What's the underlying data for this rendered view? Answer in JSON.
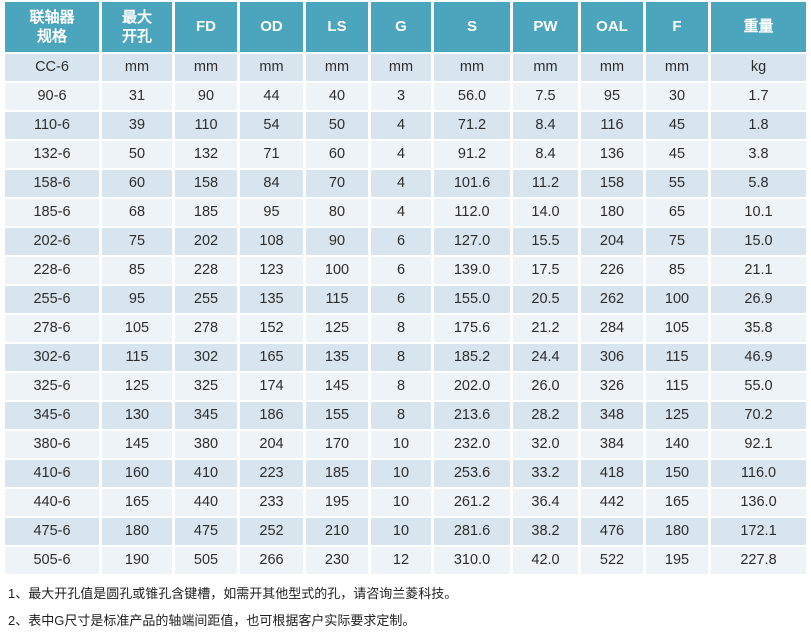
{
  "colors": {
    "header_bg": "#4AA5BD",
    "header_text": "#FFFFFF",
    "row_dark": "#D8E5EE",
    "row_light": "#EDF3F7",
    "cell_text": "#2D2D2D",
    "note_text": "#1F1F1F",
    "page_bg": "#FFFFFF"
  },
  "table": {
    "columns": [
      {
        "key": "model",
        "label": "联轴器\n规格"
      },
      {
        "key": "max-bore",
        "label": "最大\n开孔"
      },
      {
        "key": "fd",
        "label": "FD"
      },
      {
        "key": "od",
        "label": "OD"
      },
      {
        "key": "ls",
        "label": "LS"
      },
      {
        "key": "g",
        "label": "G"
      },
      {
        "key": "s",
        "label": "S"
      },
      {
        "key": "pw",
        "label": "PW"
      },
      {
        "key": "oal",
        "label": "OAL"
      },
      {
        "key": "f",
        "label": "F"
      },
      {
        "key": "weight",
        "label": "重量"
      }
    ],
    "units_row": [
      "CC-6",
      "mm",
      "mm",
      "mm",
      "mm",
      "mm",
      "mm",
      "mm",
      "mm",
      "mm",
      "kg"
    ],
    "rows": [
      [
        "90-6",
        "31",
        "90",
        "44",
        "40",
        "3",
        "56.0",
        "7.5",
        "95",
        "30",
        "1.7"
      ],
      [
        "110-6",
        "39",
        "110",
        "54",
        "50",
        "4",
        "71.2",
        "8.4",
        "116",
        "45",
        "1.8"
      ],
      [
        "132-6",
        "50",
        "132",
        "71",
        "60",
        "4",
        "91.2",
        "8.4",
        "136",
        "45",
        "3.8"
      ],
      [
        "158-6",
        "60",
        "158",
        "84",
        "70",
        "4",
        "101.6",
        "11.2",
        "158",
        "55",
        "5.8"
      ],
      [
        "185-6",
        "68",
        "185",
        "95",
        "80",
        "4",
        "112.0",
        "14.0",
        "180",
        "65",
        "10.1"
      ],
      [
        "202-6",
        "75",
        "202",
        "108",
        "90",
        "6",
        "127.0",
        "15.5",
        "204",
        "75",
        "15.0"
      ],
      [
        "228-6",
        "85",
        "228",
        "123",
        "100",
        "6",
        "139.0",
        "17.5",
        "226",
        "85",
        "21.1"
      ],
      [
        "255-6",
        "95",
        "255",
        "135",
        "115",
        "6",
        "155.0",
        "20.5",
        "262",
        "100",
        "26.9"
      ],
      [
        "278-6",
        "105",
        "278",
        "152",
        "125",
        "8",
        "175.6",
        "21.2",
        "284",
        "105",
        "35.8"
      ],
      [
        "302-6",
        "115",
        "302",
        "165",
        "135",
        "8",
        "185.2",
        "24.4",
        "306",
        "115",
        "46.9"
      ],
      [
        "325-6",
        "125",
        "325",
        "174",
        "145",
        "8",
        "202.0",
        "26.0",
        "326",
        "115",
        "55.0"
      ],
      [
        "345-6",
        "130",
        "345",
        "186",
        "155",
        "8",
        "213.6",
        "28.2",
        "348",
        "125",
        "70.2"
      ],
      [
        "380-6",
        "145",
        "380",
        "204",
        "170",
        "10",
        "232.0",
        "32.0",
        "384",
        "140",
        "92.1"
      ],
      [
        "410-6",
        "160",
        "410",
        "223",
        "185",
        "10",
        "253.6",
        "33.2",
        "418",
        "150",
        "116.0"
      ],
      [
        "440-6",
        "165",
        "440",
        "233",
        "195",
        "10",
        "261.2",
        "36.4",
        "442",
        "165",
        "136.0"
      ],
      [
        "475-6",
        "180",
        "475",
        "252",
        "210",
        "10",
        "281.6",
        "38.2",
        "476",
        "180",
        "172.1"
      ],
      [
        "505-6",
        "190",
        "505",
        "266",
        "230",
        "12",
        "310.0",
        "42.0",
        "522",
        "195",
        "227.8"
      ]
    ]
  },
  "notes": [
    "1、最大开孔值是圆孔或锥孔含键槽，如需开其他型式的孔，请咨询兰菱科技。",
    "2、表中G尺寸是标准产品的轴端间距值，也可根据客户实际要求定制。"
  ]
}
